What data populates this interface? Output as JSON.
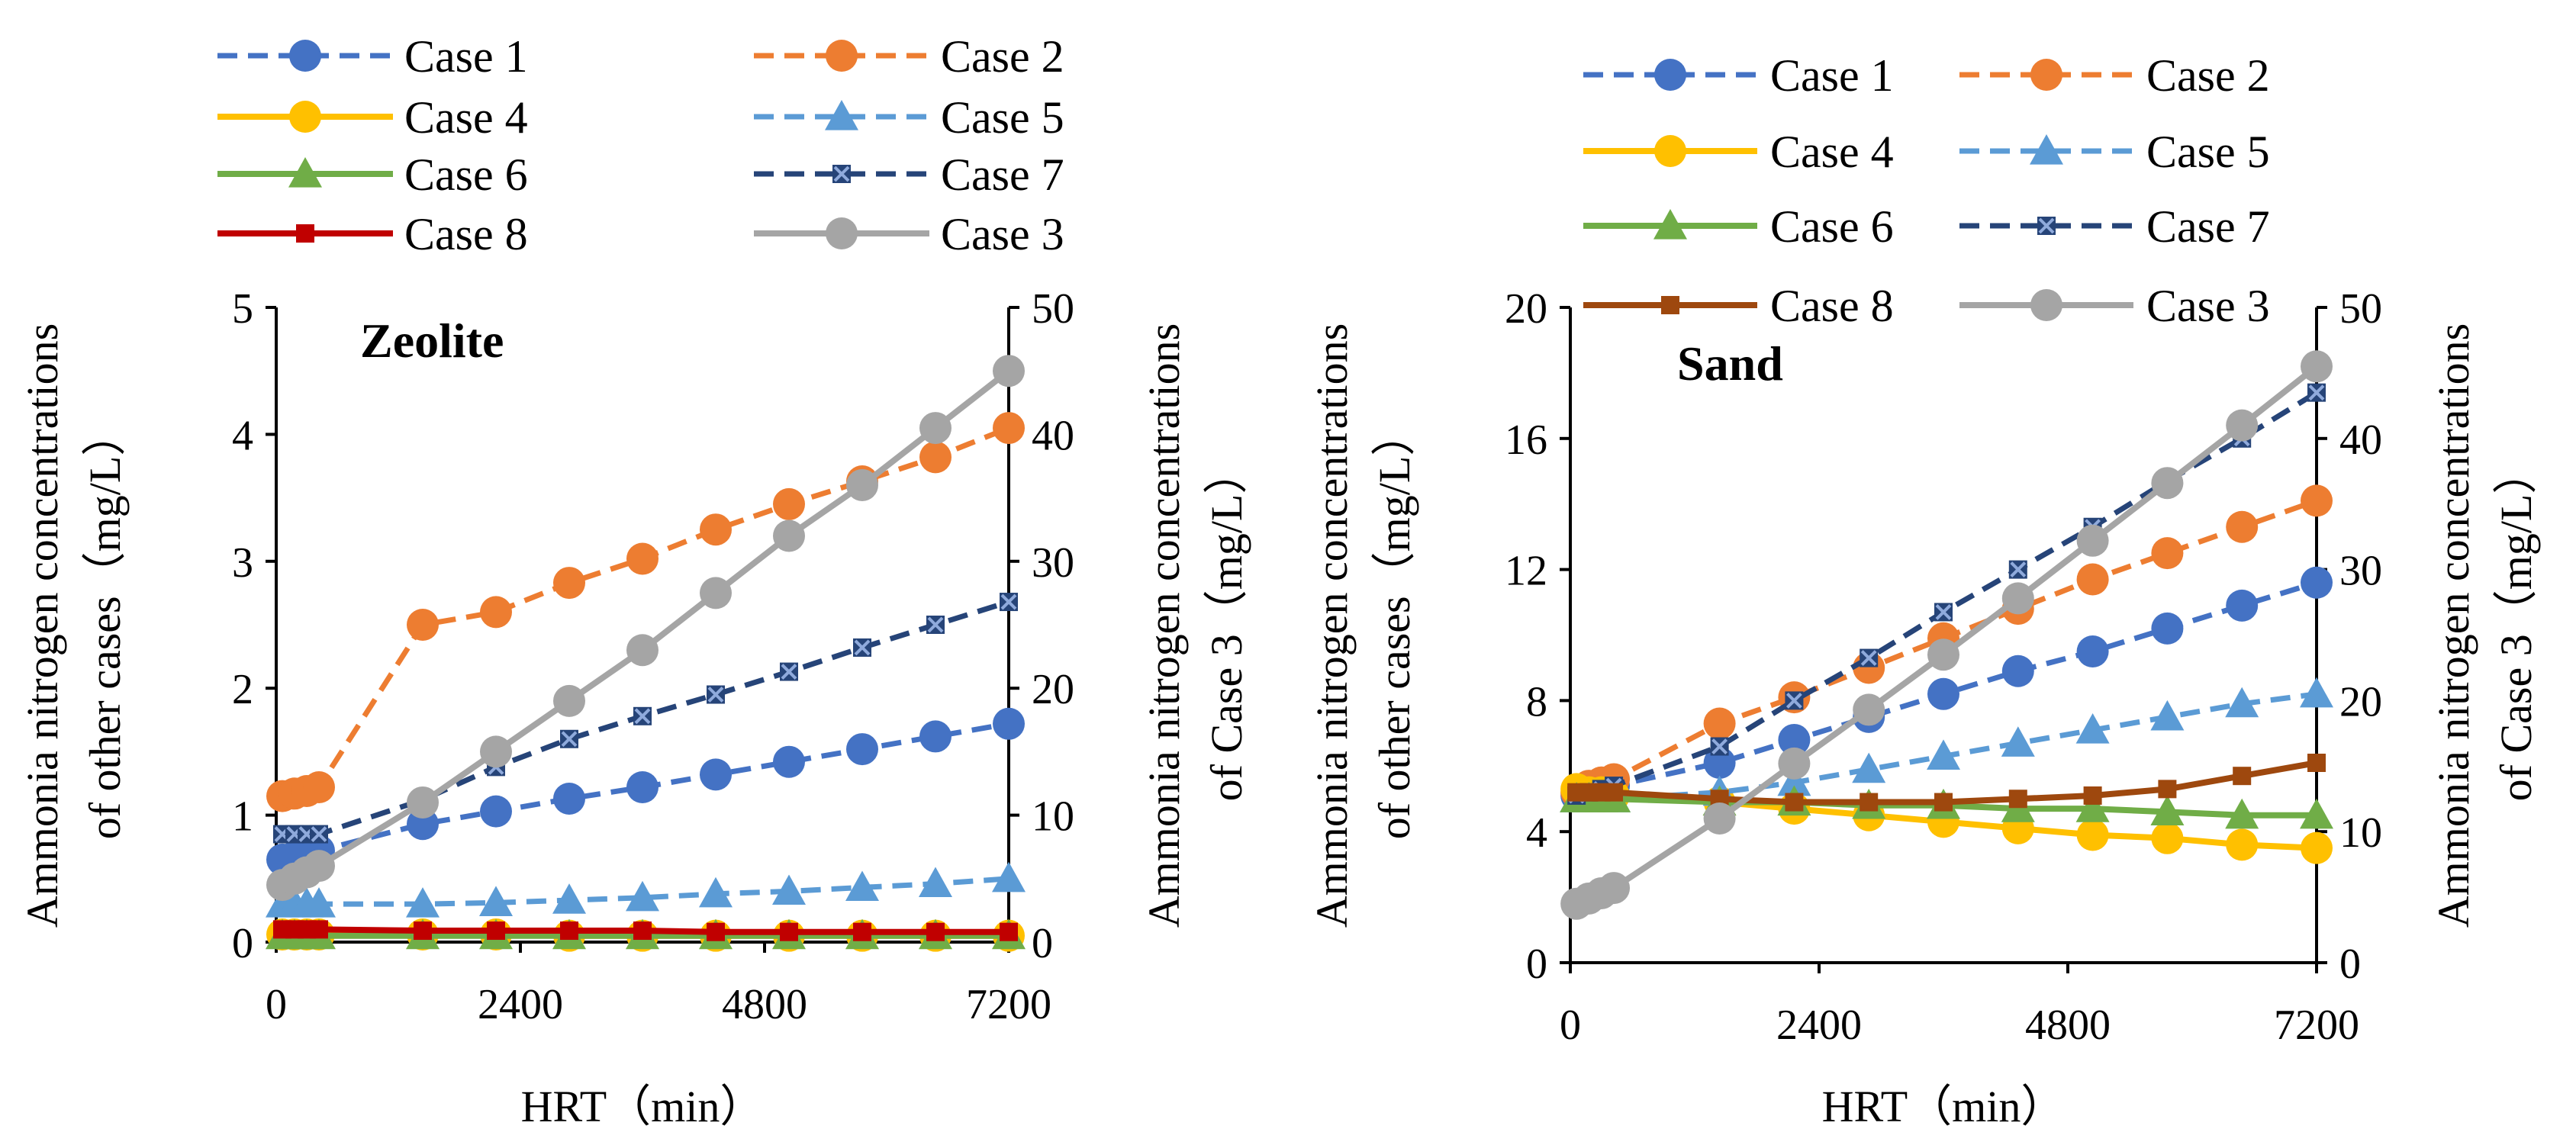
{
  "chart_data": [
    {
      "type": "line",
      "title": "Zeolite",
      "xlabel": "HRT（min）",
      "ylabel_left": [
        "Ammonia nitrogen concentrations",
        "of other cases（mg/L）"
      ],
      "ylabel_right": [
        "Ammonia nitrogen concentrations",
        "of Case 3（mg/L）"
      ],
      "xlim": [
        0,
        7200
      ],
      "x_ticks": [
        "0",
        "2400",
        "4800",
        "7200"
      ],
      "x_tick_values": [
        0,
        2400,
        4800,
        7200
      ],
      "ylim_left": [
        0,
        5
      ],
      "y_ticks_left": [
        "0",
        "1",
        "2",
        "3",
        "4",
        "5"
      ],
      "y_tick_values_left": [
        0,
        1,
        2,
        3,
        4,
        5
      ],
      "ylim_right": [
        0,
        50
      ],
      "y_ticks_right": [
        "0",
        "10",
        "20",
        "30",
        "40",
        "50"
      ],
      "y_tick_values_right": [
        0,
        10,
        20,
        30,
        40,
        50
      ],
      "legend_position": "top",
      "legend_order": [
        "Case 1",
        "Case 2",
        "Case 4",
        "Case 5",
        "Case 6",
        "Case 7",
        "Case 8",
        "Case 3"
      ],
      "series": [
        {
          "name": "Case 1",
          "axis": "left",
          "color": "#4472C4",
          "dash": true,
          "marker": "circle",
          "x": [
            60,
            180,
            300,
            420,
            1440,
            2160,
            2880,
            3600,
            4320,
            5040,
            5760,
            6480,
            7200
          ],
          "y": [
            0.65,
            0.67,
            0.69,
            0.72,
            0.93,
            1.03,
            1.13,
            1.22,
            1.32,
            1.42,
            1.52,
            1.62,
            1.72
          ]
        },
        {
          "name": "Case 2",
          "axis": "left",
          "color": "#ED7D31",
          "dash": true,
          "marker": "circle",
          "x": [
            60,
            180,
            300,
            420,
            1440,
            2160,
            2880,
            3600,
            4320,
            5040,
            5760,
            6480,
            7200
          ],
          "y": [
            1.15,
            1.17,
            1.19,
            1.22,
            2.5,
            2.6,
            2.83,
            3.02,
            3.25,
            3.45,
            3.63,
            3.82,
            4.05
          ]
        },
        {
          "name": "Case 4",
          "axis": "left",
          "color": "#FFC000",
          "dash": false,
          "marker": "circle",
          "x": [
            60,
            180,
            300,
            420,
            1440,
            2160,
            2880,
            3600,
            4320,
            5040,
            5760,
            6480,
            7200
          ],
          "y": [
            0.06,
            0.06,
            0.06,
            0.06,
            0.06,
            0.06,
            0.05,
            0.05,
            0.05,
            0.05,
            0.05,
            0.05,
            0.05
          ]
        },
        {
          "name": "Case 5",
          "axis": "left",
          "color": "#5B9BD5",
          "dash": true,
          "marker": "triangle",
          "x": [
            60,
            180,
            300,
            420,
            1440,
            2160,
            2880,
            3600,
            4320,
            5040,
            5760,
            6480,
            7200
          ],
          "y": [
            0.3,
            0.3,
            0.3,
            0.3,
            0.3,
            0.31,
            0.33,
            0.35,
            0.38,
            0.4,
            0.43,
            0.46,
            0.5
          ]
        },
        {
          "name": "Case 6",
          "axis": "left",
          "color": "#70AD47",
          "dash": false,
          "marker": "triangle",
          "x": [
            60,
            180,
            300,
            420,
            1440,
            2160,
            2880,
            3600,
            4320,
            5040,
            5760,
            6480,
            7200
          ],
          "y": [
            0.05,
            0.05,
            0.05,
            0.05,
            0.05,
            0.05,
            0.05,
            0.05,
            0.05,
            0.05,
            0.05,
            0.05,
            0.05
          ]
        },
        {
          "name": "Case 7",
          "axis": "left",
          "color": "#264478",
          "dash": true,
          "marker": "x-square",
          "x": [
            60,
            180,
            300,
            420,
            1440,
            2160,
            2880,
            3600,
            4320,
            5040,
            5760,
            6480,
            7200
          ],
          "y": [
            0.85,
            0.85,
            0.85,
            0.85,
            1.12,
            1.38,
            1.6,
            1.78,
            1.95,
            2.13,
            2.32,
            2.5,
            2.68
          ]
        },
        {
          "name": "Case 8",
          "axis": "left",
          "color": "#C00000",
          "dash": false,
          "marker": "square",
          "x": [
            60,
            180,
            300,
            420,
            1440,
            2160,
            2880,
            3600,
            4320,
            5040,
            5760,
            6480,
            7200
          ],
          "y": [
            0.1,
            0.1,
            0.1,
            0.1,
            0.09,
            0.09,
            0.09,
            0.09,
            0.08,
            0.08,
            0.08,
            0.08,
            0.08
          ]
        },
        {
          "name": "Case 3",
          "axis": "right",
          "color": "#A5A5A5",
          "dash": false,
          "marker": "circle",
          "x": [
            60,
            180,
            300,
            420,
            1440,
            2160,
            2880,
            3600,
            4320,
            5040,
            5760,
            6480,
            7200
          ],
          "y": [
            4.5,
            5.0,
            5.5,
            6.0,
            11.0,
            15.0,
            19.0,
            23.0,
            27.5,
            32.0,
            36.0,
            40.5,
            45.0
          ]
        }
      ]
    },
    {
      "type": "line",
      "title": "Sand",
      "xlabel": "HRT（min）",
      "ylabel_left": [
        "Ammonia nitrogen concentrations",
        "of other cases（mg/L）"
      ],
      "ylabel_right": [
        "Ammonia nitrogen concentrations",
        "of Case 3（mg/L）"
      ],
      "xlim": [
        0,
        7200
      ],
      "x_ticks": [
        "0",
        "2400",
        "4800",
        "7200"
      ],
      "x_tick_values": [
        0,
        2400,
        4800,
        7200
      ],
      "ylim_left": [
        0,
        20
      ],
      "y_ticks_left": [
        "0",
        "4",
        "8",
        "12",
        "16",
        "20"
      ],
      "y_tick_values_left": [
        0,
        4,
        8,
        12,
        16,
        20
      ],
      "ylim_right": [
        0,
        50
      ],
      "y_ticks_right": [
        "0",
        "10",
        "20",
        "30",
        "40",
        "50"
      ],
      "y_tick_values_right": [
        0,
        10,
        20,
        30,
        40,
        50
      ],
      "legend_position": "top",
      "legend_order": [
        "Case 1",
        "Case 2",
        "Case 4",
        "Case 5",
        "Case 6",
        "Case 7",
        "Case 8",
        "Case 3"
      ],
      "series": [
        {
          "name": "Case 1",
          "axis": "left",
          "color": "#4472C4",
          "dash": true,
          "marker": "circle",
          "x": [
            60,
            180,
            300,
            420,
            1440,
            2160,
            2880,
            3600,
            4320,
            5040,
            5760,
            6480,
            7200
          ],
          "y": [
            5.1,
            5.2,
            5.3,
            5.4,
            6.1,
            6.8,
            7.5,
            8.2,
            8.9,
            9.5,
            10.2,
            10.9,
            11.6
          ]
        },
        {
          "name": "Case 2",
          "axis": "left",
          "color": "#ED7D31",
          "dash": true,
          "marker": "circle",
          "x": [
            60,
            180,
            300,
            420,
            1440,
            2160,
            2880,
            3600,
            4320,
            5040,
            5760,
            6480,
            7200
          ],
          "y": [
            5.2,
            5.4,
            5.5,
            5.6,
            7.3,
            8.1,
            9.0,
            9.9,
            10.8,
            11.7,
            12.5,
            13.3,
            14.1
          ]
        },
        {
          "name": "Case 4",
          "axis": "left",
          "color": "#FFC000",
          "dash": false,
          "marker": "circle",
          "x": [
            60,
            180,
            300,
            420,
            1440,
            2160,
            2880,
            3600,
            4320,
            5040,
            5760,
            6480,
            7200
          ],
          "y": [
            5.3,
            5.2,
            5.2,
            5.1,
            4.9,
            4.7,
            4.5,
            4.3,
            4.1,
            3.9,
            3.8,
            3.6,
            3.5
          ]
        },
        {
          "name": "Case 5",
          "axis": "left",
          "color": "#5B9BD5",
          "dash": true,
          "marker": "triangle",
          "x": [
            60,
            180,
            300,
            420,
            1440,
            2160,
            2880,
            3600,
            4320,
            5040,
            5760,
            6480,
            7200
          ],
          "y": [
            5.0,
            5.0,
            5.0,
            5.0,
            5.2,
            5.5,
            5.9,
            6.3,
            6.7,
            7.1,
            7.5,
            7.9,
            8.2
          ]
        },
        {
          "name": "Case 6",
          "axis": "left",
          "color": "#70AD47",
          "dash": false,
          "marker": "triangle",
          "x": [
            60,
            180,
            300,
            420,
            1440,
            2160,
            2880,
            3600,
            4320,
            5040,
            5760,
            6480,
            7200
          ],
          "y": [
            5.0,
            5.0,
            5.0,
            5.0,
            4.9,
            4.9,
            4.8,
            4.8,
            4.7,
            4.7,
            4.6,
            4.5,
            4.5
          ]
        },
        {
          "name": "Case 7",
          "axis": "left",
          "color": "#264478",
          "dash": true,
          "marker": "x-square",
          "x": [
            60,
            180,
            300,
            420,
            1440,
            2160,
            2880,
            3600,
            4320,
            5040,
            5760,
            6480,
            7200
          ],
          "y": [
            5.1,
            5.2,
            5.3,
            5.4,
            6.6,
            8.0,
            9.3,
            10.7,
            12.0,
            13.3,
            14.7,
            16.0,
            17.4
          ]
        },
        {
          "name": "Case 8",
          "axis": "left",
          "color": "#9E480E",
          "dash": false,
          "marker": "square",
          "x": [
            60,
            180,
            300,
            420,
            1440,
            2160,
            2880,
            3600,
            4320,
            5040,
            5760,
            6480,
            7200
          ],
          "y": [
            5.2,
            5.2,
            5.2,
            5.2,
            5.0,
            4.9,
            4.9,
            4.9,
            5.0,
            5.1,
            5.3,
            5.7,
            6.1
          ]
        },
        {
          "name": "Case 3",
          "axis": "right",
          "color": "#A5A5A5",
          "dash": false,
          "marker": "circle",
          "x": [
            60,
            180,
            300,
            420,
            1440,
            2160,
            2880,
            3600,
            4320,
            5040,
            5760,
            6480,
            7200
          ],
          "y": [
            4.5,
            4.9,
            5.3,
            5.7,
            11.0,
            15.2,
            19.3,
            23.5,
            27.8,
            32.2,
            36.6,
            41.0,
            45.5
          ]
        }
      ]
    }
  ]
}
